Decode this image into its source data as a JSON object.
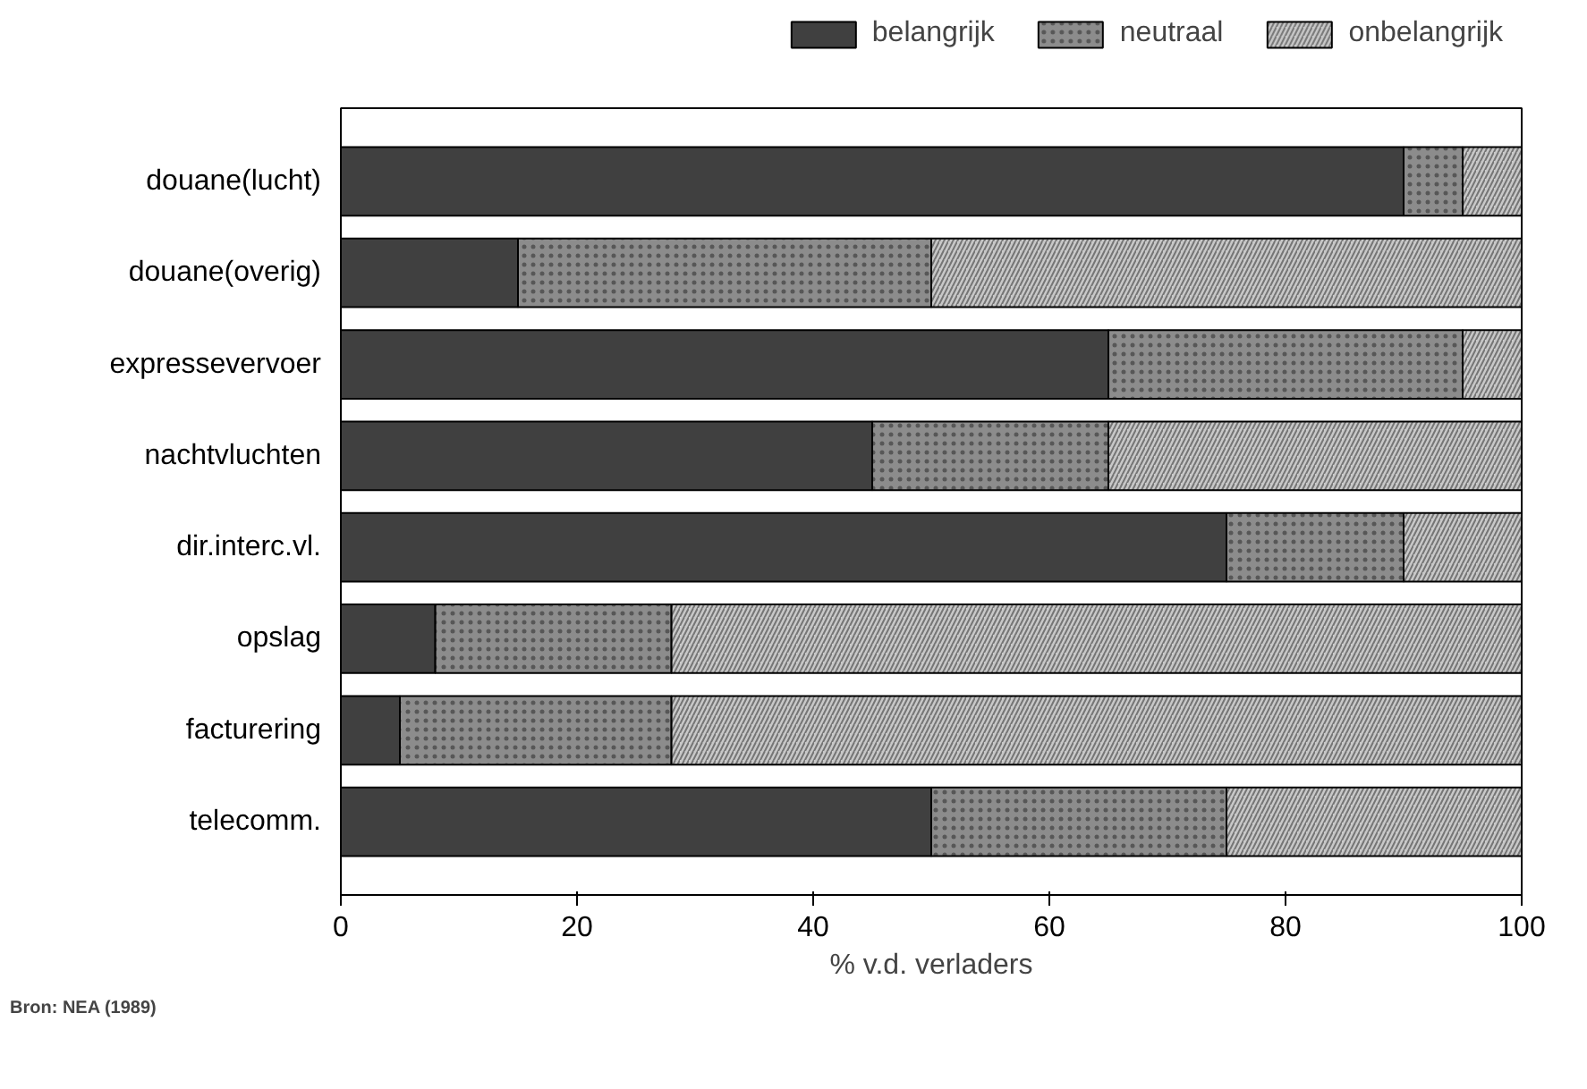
{
  "chart_data": {
    "type": "bar",
    "orientation": "horizontal",
    "stacked": true,
    "categories": [
      "douane(lucht)",
      "douane(overig)",
      "expressevervoer",
      "nachtvluchten",
      "dir.interc.vl.",
      "opslag",
      "facturering",
      "telecomm."
    ],
    "series": [
      {
        "name": "belangrijk",
        "color": "#404040",
        "values": [
          90,
          15,
          65,
          45,
          75,
          8,
          5,
          50
        ]
      },
      {
        "name": "neutraal",
        "color": "#8c8c8c",
        "values": [
          5,
          35,
          30,
          20,
          15,
          20,
          23,
          25
        ]
      },
      {
        "name": "onbelangrijk",
        "color": "#c8c8c8",
        "values": [
          5,
          50,
          5,
          35,
          10,
          72,
          72,
          25
        ]
      }
    ],
    "xlabel": "% v.d. verladers",
    "xlim": [
      0,
      100
    ],
    "xticks": [
      0,
      20,
      40,
      60,
      80,
      100
    ],
    "grid": false,
    "legend": "top",
    "annotations": [
      "Bron: NEA (1989)"
    ]
  }
}
